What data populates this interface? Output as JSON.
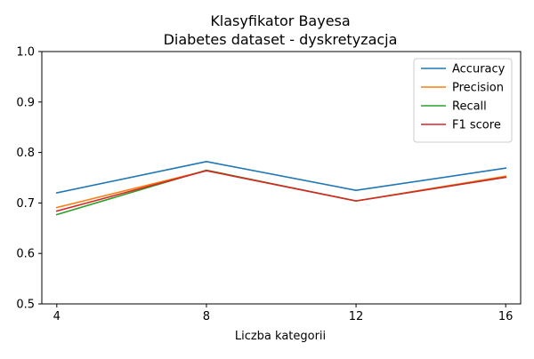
{
  "chart_data": {
    "type": "line",
    "title": "Klasyfikator Bayesa",
    "subtitle": "Diabetes dataset - dyskretyzacja",
    "xlabel": "Liczba kategorii",
    "ylabel": "",
    "x": [
      4,
      8,
      12,
      16
    ],
    "x_ticks": [
      "4",
      "8",
      "12",
      "16"
    ],
    "xlim": [
      3.6,
      16.4
    ],
    "ylim": [
      0.5,
      1.0
    ],
    "y_ticks": [
      "0.5",
      "0.6",
      "0.7",
      "0.8",
      "0.9",
      "1.0"
    ],
    "grid": false,
    "legend_position": "top-right",
    "series": [
      {
        "name": "Accuracy",
        "color": "#1f77b4",
        "values": [
          0.72,
          0.782,
          0.725,
          0.769
        ]
      },
      {
        "name": "Precision",
        "color": "#ff7f0e",
        "values": [
          0.691,
          0.764,
          0.704,
          0.753
        ]
      },
      {
        "name": "Recall",
        "color": "#2ca02c",
        "values": [
          0.677,
          0.765,
          0.704,
          0.751
        ]
      },
      {
        "name": "F1 score",
        "color": "#d62728",
        "values": [
          0.684,
          0.764,
          0.704,
          0.751
        ]
      }
    ]
  }
}
